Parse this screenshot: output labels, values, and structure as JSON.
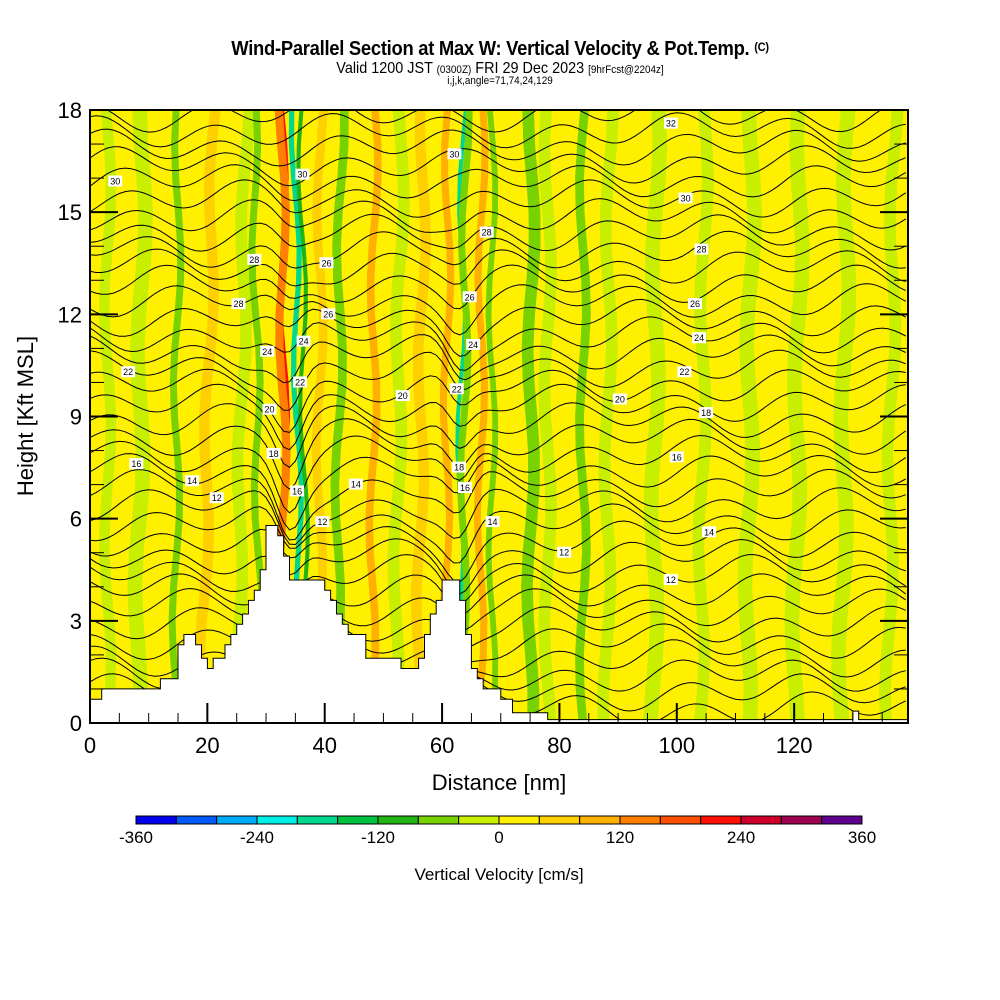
{
  "chart_data": {
    "type": "heatmap",
    "title": "Wind-Parallel Section at Max W: Vertical Velocity & Pot.Temp.",
    "title_mark": "(C)",
    "subtitle_main": "Valid 1200 JST",
    "subtitle_utc": "(0300Z)",
    "subtitle_date": "FRI 29 Dec 2023",
    "subtitle_fcst": "[9hrFcst@2204z]",
    "subtitle2": "i,j,k,angle=71,74,24,129",
    "xlabel": "Distance [nm]",
    "ylabel": "Height [Kft MSL]",
    "xlim": [
      0,
      139.4
    ],
    "ylim": [
      0,
      18
    ],
    "xticks": [
      "0",
      "20",
      "40",
      "60",
      "80",
      "100",
      "120"
    ],
    "xtick_values": [
      0,
      20,
      40,
      60,
      80,
      100,
      120
    ],
    "yticks": [
      "0",
      "3",
      "6",
      "9",
      "12",
      "15",
      "18"
    ],
    "ytick_values": [
      0,
      3,
      6,
      9,
      12,
      15,
      18
    ],
    "colorbar": {
      "label": "Vertical Velocity [cm/s]",
      "min": -360,
      "max": 360,
      "step": 40,
      "tick_labels": [
        "-360",
        "-240",
        "-120",
        "0",
        "120",
        "240",
        "360"
      ],
      "tick_values": [
        -360,
        -240,
        -120,
        0,
        120,
        240,
        360
      ],
      "colors": [
        "#0000f0",
        "#005af8",
        "#00aaf8",
        "#00f0e8",
        "#00d890",
        "#00c040",
        "#20b414",
        "#78d200",
        "#c8ee00",
        "#fff000",
        "#ffd000",
        "#ffb000",
        "#ff8000",
        "#ff5000",
        "#ff1000",
        "#d0002c",
        "#a00050",
        "#600090"
      ]
    },
    "terrain_kft": [
      [
        0,
        0.7
      ],
      [
        2,
        0.7
      ],
      [
        2,
        1.0
      ],
      [
        12,
        1.0
      ],
      [
        12,
        1.3
      ],
      [
        15,
        1.3
      ],
      [
        15,
        2.3
      ],
      [
        16,
        2.3
      ],
      [
        16,
        2.6
      ],
      [
        18,
        2.6
      ],
      [
        18,
        2.3
      ],
      [
        19,
        2.3
      ],
      [
        19,
        1.9
      ],
      [
        20,
        1.9
      ],
      [
        20,
        1.6
      ],
      [
        21,
        1.6
      ],
      [
        21,
        1.9
      ],
      [
        23,
        1.9
      ],
      [
        23,
        2.3
      ],
      [
        24,
        2.3
      ],
      [
        24,
        2.6
      ],
      [
        25,
        2.6
      ],
      [
        25,
        2.9
      ],
      [
        26,
        2.9
      ],
      [
        26,
        3.2
      ],
      [
        27,
        3.2
      ],
      [
        27,
        3.6
      ],
      [
        28,
        3.6
      ],
      [
        28,
        3.9
      ],
      [
        29,
        3.9
      ],
      [
        29,
        4.5
      ],
      [
        30,
        4.5
      ],
      [
        30,
        5.8
      ],
      [
        32,
        5.8
      ],
      [
        32,
        5.5
      ],
      [
        33,
        5.5
      ],
      [
        33,
        4.9
      ],
      [
        34,
        4.9
      ],
      [
        34,
        4.2
      ],
      [
        40,
        4.2
      ],
      [
        40,
        3.9
      ],
      [
        41,
        3.9
      ],
      [
        41,
        3.6
      ],
      [
        42,
        3.6
      ],
      [
        42,
        3.2
      ],
      [
        43,
        3.2
      ],
      [
        43,
        2.9
      ],
      [
        44,
        2.9
      ],
      [
        44,
        2.6
      ],
      [
        47,
        2.6
      ],
      [
        47,
        1.9
      ],
      [
        53,
        1.9
      ],
      [
        53,
        1.6
      ],
      [
        56,
        1.6
      ],
      [
        56,
        1.9
      ],
      [
        57,
        1.9
      ],
      [
        57,
        2.6
      ],
      [
        58,
        2.6
      ],
      [
        58,
        3.2
      ],
      [
        59,
        3.2
      ],
      [
        59,
        3.6
      ],
      [
        60,
        3.6
      ],
      [
        60,
        4.2
      ],
      [
        63,
        4.2
      ],
      [
        63,
        3.6
      ],
      [
        64,
        3.6
      ],
      [
        64,
        2.6
      ],
      [
        65,
        2.6
      ],
      [
        65,
        1.6
      ],
      [
        66,
        1.6
      ],
      [
        66,
        1.3
      ],
      [
        67,
        1.3
      ],
      [
        67,
        1.0
      ],
      [
        70,
        1.0
      ],
      [
        70,
        0.7
      ],
      [
        72,
        0.7
      ],
      [
        72,
        0.3
      ],
      [
        78,
        0.3
      ],
      [
        78,
        0.1
      ],
      [
        130,
        0.1
      ],
      [
        130,
        0.35
      ],
      [
        131,
        0.35
      ],
      [
        131,
        0.1
      ],
      [
        139.4,
        0.1
      ]
    ],
    "contour_labels": [
      {
        "text": "30",
        "x": 4.3,
        "y": 15.9
      },
      {
        "text": "30",
        "x": 36.2,
        "y": 16.1
      },
      {
        "text": "28",
        "x": 28,
        "y": 13.6
      },
      {
        "text": "28",
        "x": 25.3,
        "y": 12.3
      },
      {
        "text": "26",
        "x": 40.3,
        "y": 13.5
      },
      {
        "text": "26",
        "x": 40.6,
        "y": 12.0
      },
      {
        "text": "24",
        "x": 30.2,
        "y": 10.9
      },
      {
        "text": "24",
        "x": 36.4,
        "y": 11.2
      },
      {
        "text": "22",
        "x": 6.5,
        "y": 10.3
      },
      {
        "text": "22",
        "x": 35.8,
        "y": 10.0
      },
      {
        "text": "20",
        "x": 30.6,
        "y": 9.2
      },
      {
        "text": "18",
        "x": 31.3,
        "y": 7.9
      },
      {
        "text": "16",
        "x": 35.3,
        "y": 6.8
      },
      {
        "text": "14",
        "x": 45.3,
        "y": 7.0
      },
      {
        "text": "12",
        "x": 39.6,
        "y": 5.9
      },
      {
        "text": "20",
        "x": 53.3,
        "y": 9.6
      },
      {
        "text": "22",
        "x": 62.5,
        "y": 9.8
      },
      {
        "text": "18",
        "x": 62.9,
        "y": 7.5
      },
      {
        "text": "16",
        "x": 63.9,
        "y": 6.9
      },
      {
        "text": "14",
        "x": 68.6,
        "y": 5.9
      },
      {
        "text": "16",
        "x": 7.9,
        "y": 7.6
      },
      {
        "text": "14",
        "x": 17.4,
        "y": 7.1
      },
      {
        "text": "12",
        "x": 21.6,
        "y": 6.6
      },
      {
        "text": "30",
        "x": 62.1,
        "y": 16.7
      },
      {
        "text": "28",
        "x": 67.6,
        "y": 14.4
      },
      {
        "text": "26",
        "x": 64.7,
        "y": 12.5
      },
      {
        "text": "24",
        "x": 65.3,
        "y": 11.1
      },
      {
        "text": "32",
        "x": 99.0,
        "y": 17.6
      },
      {
        "text": "30",
        "x": 101.5,
        "y": 15.4
      },
      {
        "text": "28",
        "x": 104.2,
        "y": 13.9
      },
      {
        "text": "26",
        "x": 103.1,
        "y": 12.3
      },
      {
        "text": "24",
        "x": 103.8,
        "y": 11.3
      },
      {
        "text": "22",
        "x": 101.3,
        "y": 10.3
      },
      {
        "text": "20",
        "x": 90.3,
        "y": 9.5
      },
      {
        "text": "18",
        "x": 105.0,
        "y": 9.1
      },
      {
        "text": "16",
        "x": 100.0,
        "y": 7.8
      },
      {
        "text": "14",
        "x": 105.5,
        "y": 5.6
      },
      {
        "text": "12",
        "x": 80.8,
        "y": 5.0
      },
      {
        "text": "12",
        "x": 99.0,
        "y": 4.2
      }
    ]
  }
}
